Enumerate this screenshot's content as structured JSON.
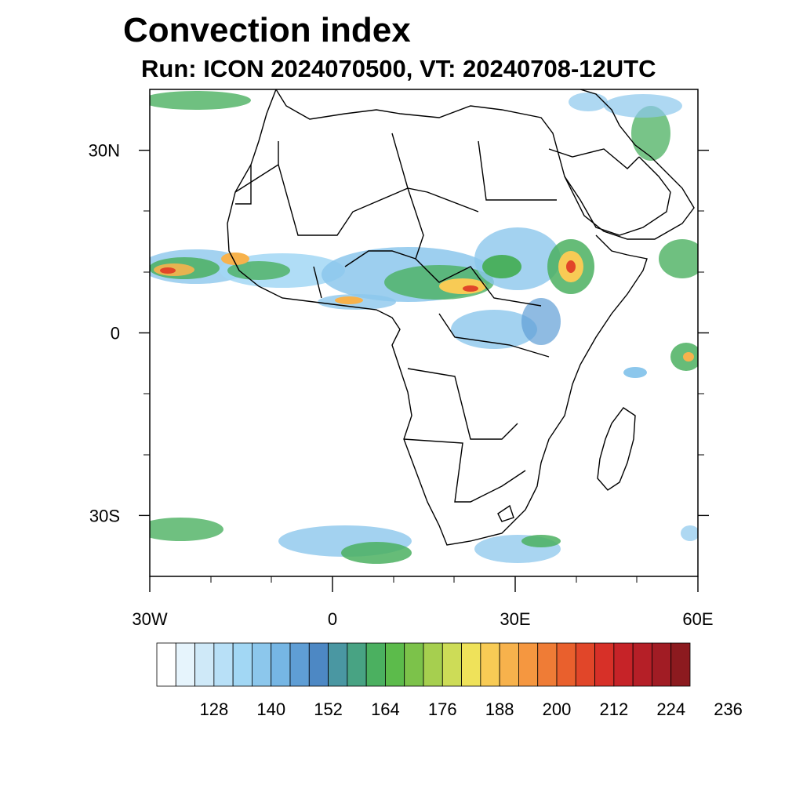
{
  "title": "Convection index",
  "subtitle": "Run: ICON 2024070500,  VT: 20240708-12UTC",
  "map": {
    "lon_range": [
      -30,
      60
    ],
    "lat_range": [
      -40,
      40
    ],
    "y_ticks": [
      {
        "lat": 30,
        "label": "30N"
      },
      {
        "lat": 0,
        "label": "0"
      },
      {
        "lat": -30,
        "label": "30S"
      }
    ],
    "x_ticks": [
      {
        "lon": -30,
        "label": "30W"
      },
      {
        "lon": 0,
        "label": "0"
      },
      {
        "lon": 30,
        "label": "30E"
      },
      {
        "lon": 60,
        "label": "60E"
      }
    ]
  },
  "colorbar": {
    "labels": [
      "128",
      "140",
      "152",
      "164",
      "176",
      "188",
      "200",
      "212",
      "224",
      "236"
    ],
    "colors": [
      "#ffffff",
      "#e6f4fc",
      "#cfe9f8",
      "#b8e0f7",
      "#a2d7f4",
      "#8cc7ec",
      "#76b6e4",
      "#5f9ed5",
      "#4d88c4",
      "#4a97a2",
      "#48a383",
      "#4bb060",
      "#5cbb4b",
      "#7cc24a",
      "#a6cf4f",
      "#cddc57",
      "#efe25a",
      "#f8cb55",
      "#f7b24c",
      "#f59740",
      "#ef7c36",
      "#e9602d",
      "#e14629",
      "#d73028",
      "#c62328",
      "#b51f27",
      "#a11c24",
      "#8c1a1f"
    ]
  }
}
